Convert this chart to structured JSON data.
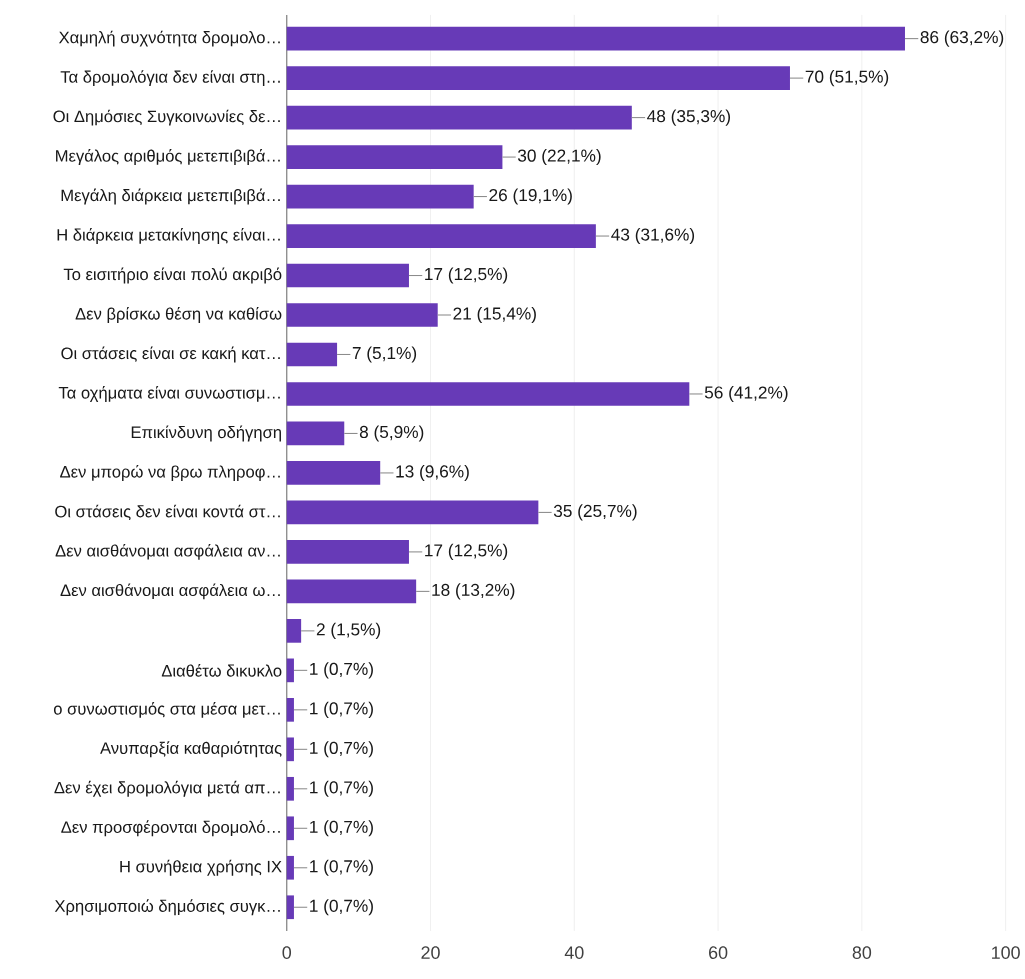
{
  "chart_data": {
    "type": "bar",
    "orientation": "horizontal",
    "color": "#673ab7",
    "categories": [
      "Χαμηλή συχνότητα δρομολο…",
      "Τα δρομολόγια δεν είναι στη…",
      "Οι Δημόσιες Συγκοινωνίες δε…",
      "Μεγάλος αριθμός μετεπιβιβά…",
      "Μεγάλη διάρκεια μετεπιβιβά…",
      "Η διάρκεια μετακίνησης είναι…",
      "Το εισιτήριο είναι πολύ ακριβό",
      "Δεν βρίσκω θέση να καθίσω",
      "Οι στάσεις είναι σε κακή κατ…",
      "Τα οχήματα είναι συνωστισμ…",
      "Επικίνδυνη οδήγηση",
      "Δεν μπορώ να βρω πληροφ…",
      "Οι στάσεις δεν είναι κοντά στ…",
      "Δεν αισθάνομαι ασφάλεια αν…",
      "Δεν αισθάνομαι ασφάλεια ω…",
      null,
      "Διαθέτω δικυκλο",
      "ο συνωστισμός στα μέσα μετ…",
      "Ανυπαρξία καθαριότητας",
      "Δεν έχει δρομολόγια μετά απ…",
      "Δεν προσφέρονται δρομολό…",
      "Η συνήθεια χρήσης ΙΧ",
      "Χρησιμοποιώ δημόσιες συγκ…"
    ],
    "values": [
      86,
      70,
      48,
      30,
      26,
      43,
      17,
      21,
      7,
      56,
      8,
      13,
      35,
      17,
      18,
      2,
      1,
      1,
      1,
      1,
      1,
      1,
      1
    ],
    "value_labels": [
      "86 (63,2%)",
      "70 (51,5%)",
      "48 (35,3%)",
      "30 (22,1%)",
      "26 (19,1%)",
      "43 (31,6%)",
      "17 (12,5%)",
      "21 (15,4%)",
      "7 (5,1%)",
      "56 (41,2%)",
      "8 (5,9%)",
      "13 (9,6%)",
      "35 (25,7%)",
      "17 (12,5%)",
      "18 (13,2%)",
      "2 (1,5%)",
      "1 (0,7%)",
      "1 (0,7%)",
      "1 (0,7%)",
      "1 (0,7%)",
      "1 (0,7%)",
      "1 (0,7%)",
      "1 (0,7%)"
    ],
    "xlim": [
      0,
      100
    ],
    "xticks": [
      0,
      20,
      40,
      60,
      80,
      100
    ],
    "grid": "x"
  }
}
